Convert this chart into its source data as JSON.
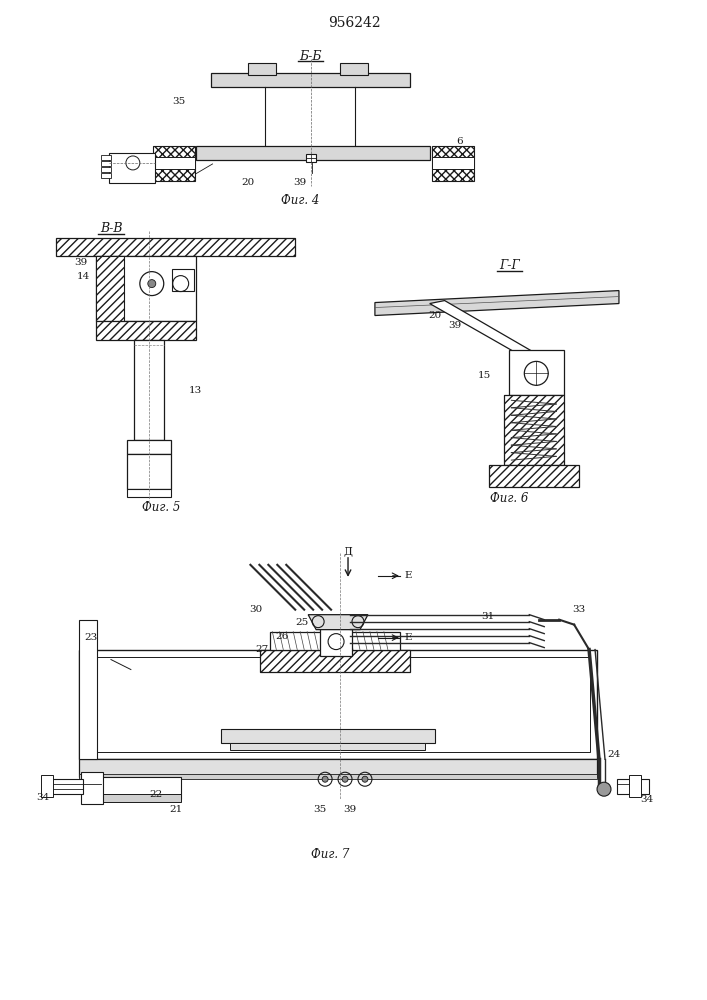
{
  "title": "956242",
  "bg": "#ffffff",
  "lc": "#1a1a1a",
  "fig4_label": "Б-Б",
  "fig4_caption": "Фиг. 4",
  "fig5_label": "В-В",
  "fig5_caption": "Фиг. 5",
  "fig6_label": "Г-Г",
  "fig6_caption": "Фиг. 6",
  "fig7_caption": "Фиг. 7"
}
